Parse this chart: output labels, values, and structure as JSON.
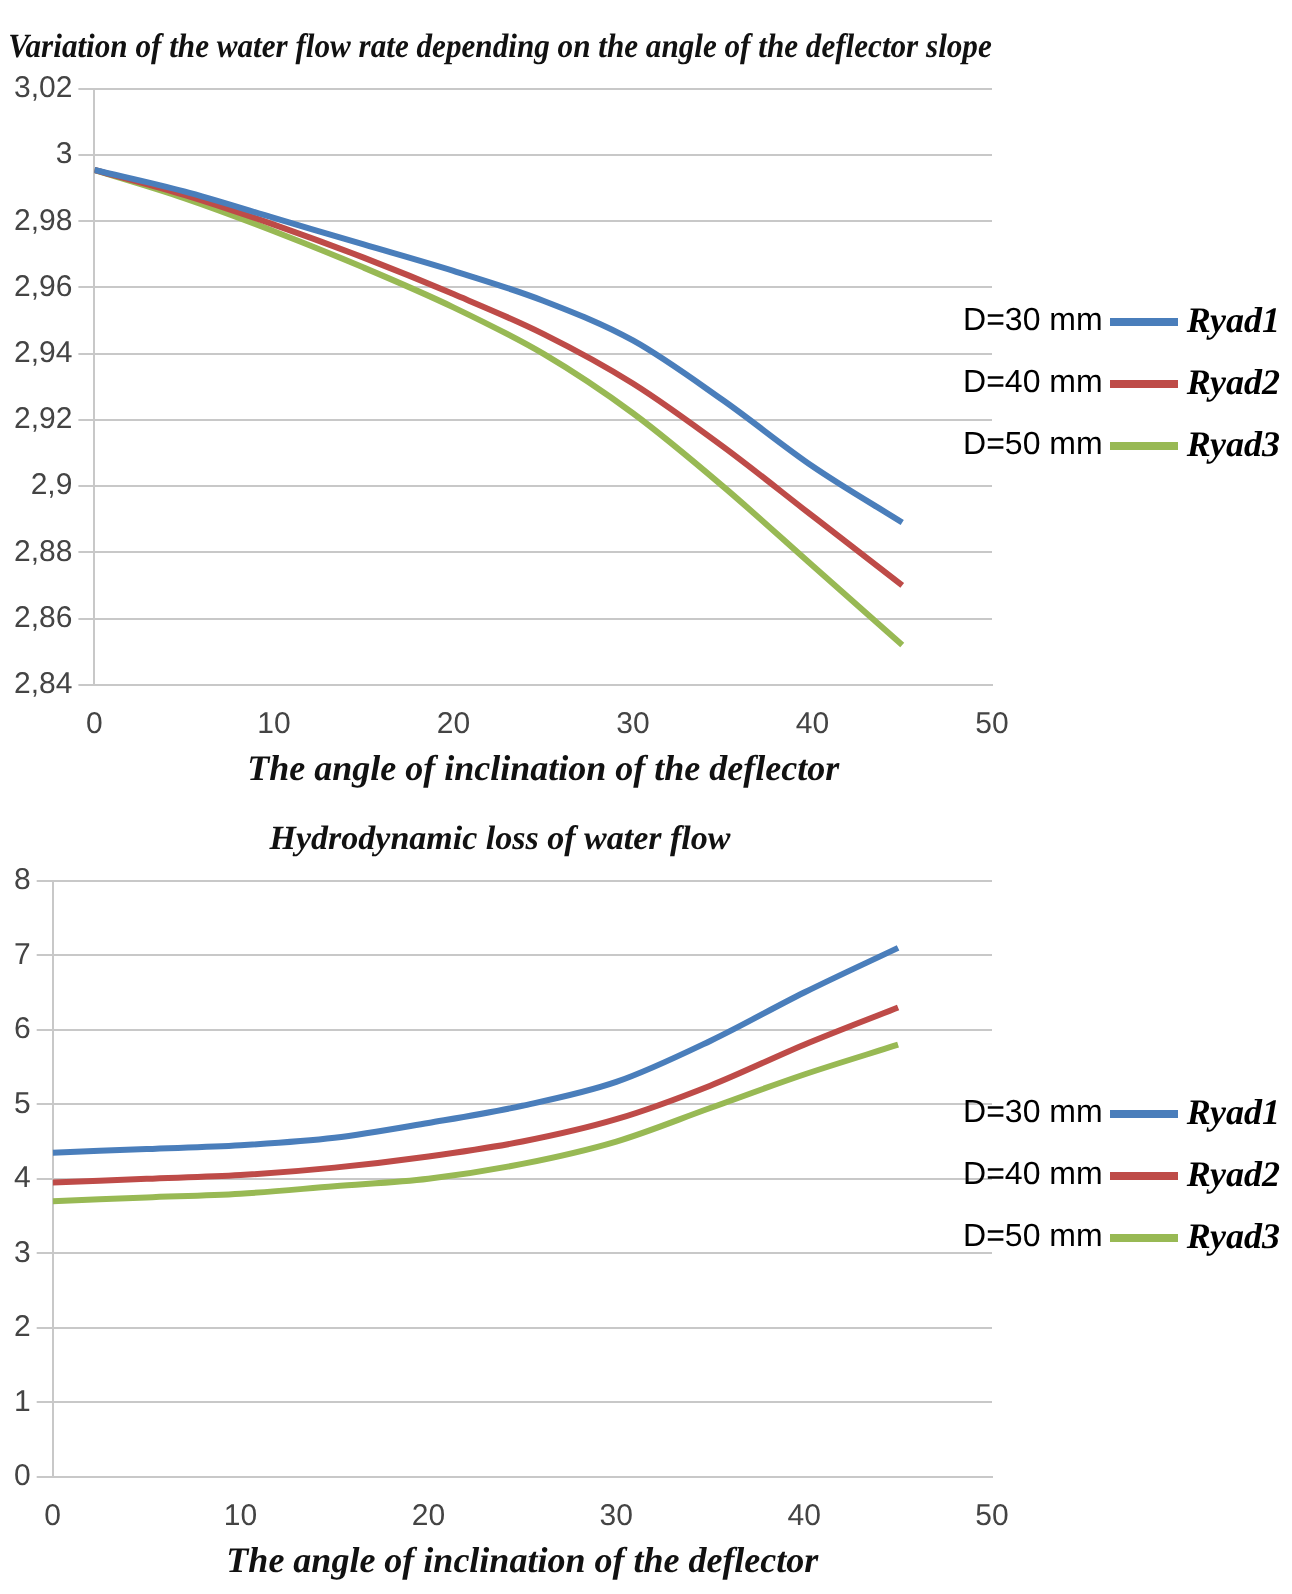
{
  "chart_data": [
    {
      "type": "line",
      "title": "Variation of the water flow rate depending on the angle of the deflector slope",
      "xlabel": "The angle of inclination of the deflector",
      "x": [
        0,
        5,
        10,
        15,
        20,
        25,
        30,
        35,
        40,
        45
      ],
      "series": [
        {
          "name": "Ryad1",
          "color": "#4a7ebb",
          "values": [
            2.9955,
            2.989,
            2.981,
            2.973,
            2.965,
            2.956,
            2.944,
            2.926,
            2.906,
            2.889
          ]
        },
        {
          "name": "Ryad2",
          "color": "#be4b48",
          "values": [
            2.9955,
            2.988,
            2.979,
            2.969,
            2.958,
            2.946,
            2.931,
            2.912,
            2.891,
            2.87
          ]
        },
        {
          "name": "Ryad3",
          "color": "#98b954",
          "values": [
            2.9955,
            2.987,
            2.977,
            2.966,
            2.954,
            2.94,
            2.922,
            2.9,
            2.876,
            2.852
          ]
        }
      ],
      "annotations": [
        "D=30 mm",
        "D=40 mm",
        "D=50 mm"
      ],
      "xlim": [
        0,
        50
      ],
      "xticks": [
        0,
        10,
        20,
        30,
        40,
        50
      ],
      "ylim": [
        2.84,
        3.02
      ],
      "yticks": [
        {
          "value": 2.84,
          "label": "2,84"
        },
        {
          "value": 2.86,
          "label": "2,86"
        },
        {
          "value": 2.88,
          "label": "2,88"
        },
        {
          "value": 2.9,
          "label": "2,9"
        },
        {
          "value": 2.92,
          "label": "2,92"
        },
        {
          "value": 2.94,
          "label": "2,94"
        },
        {
          "value": 2.96,
          "label": "2,96"
        },
        {
          "value": 2.98,
          "label": "2,98"
        },
        3,
        {
          "value": 3.02,
          "label": "3,02"
        }
      ],
      "grid": "y",
      "legend": "right",
      "marker": "none"
    },
    {
      "type": "line",
      "title": "Hydrodynamic loss of water flow",
      "xlabel": "The angle of inclination of the deflector",
      "x": [
        0,
        5,
        10,
        15,
        20,
        25,
        30,
        35,
        40,
        45
      ],
      "series": [
        {
          "name": "Ryad1",
          "color": "#4a7ebb",
          "values": [
            4.35,
            4.4,
            4.45,
            4.55,
            4.75,
            4.98,
            5.3,
            5.85,
            6.5,
            7.1
          ]
        },
        {
          "name": "Ryad2",
          "color": "#be4b48",
          "values": [
            3.95,
            4.0,
            4.05,
            4.15,
            4.3,
            4.5,
            4.8,
            5.25,
            5.8,
            6.3
          ]
        },
        {
          "name": "Ryad3",
          "color": "#98b954",
          "values": [
            3.7,
            3.75,
            3.8,
            3.9,
            4.0,
            4.2,
            4.5,
            4.95,
            5.4,
            5.8
          ]
        }
      ],
      "annotations": [
        "D=30 mm",
        "D=40 mm",
        "D=50 mm"
      ],
      "xlim": [
        0,
        50
      ],
      "xticks": [
        0,
        10,
        20,
        30,
        40,
        50
      ],
      "ylim": [
        0,
        8
      ],
      "yticks": [
        0,
        1,
        2,
        3,
        4,
        5,
        6,
        7,
        8
      ],
      "grid": "y",
      "legend": "right",
      "marker": "none"
    }
  ]
}
